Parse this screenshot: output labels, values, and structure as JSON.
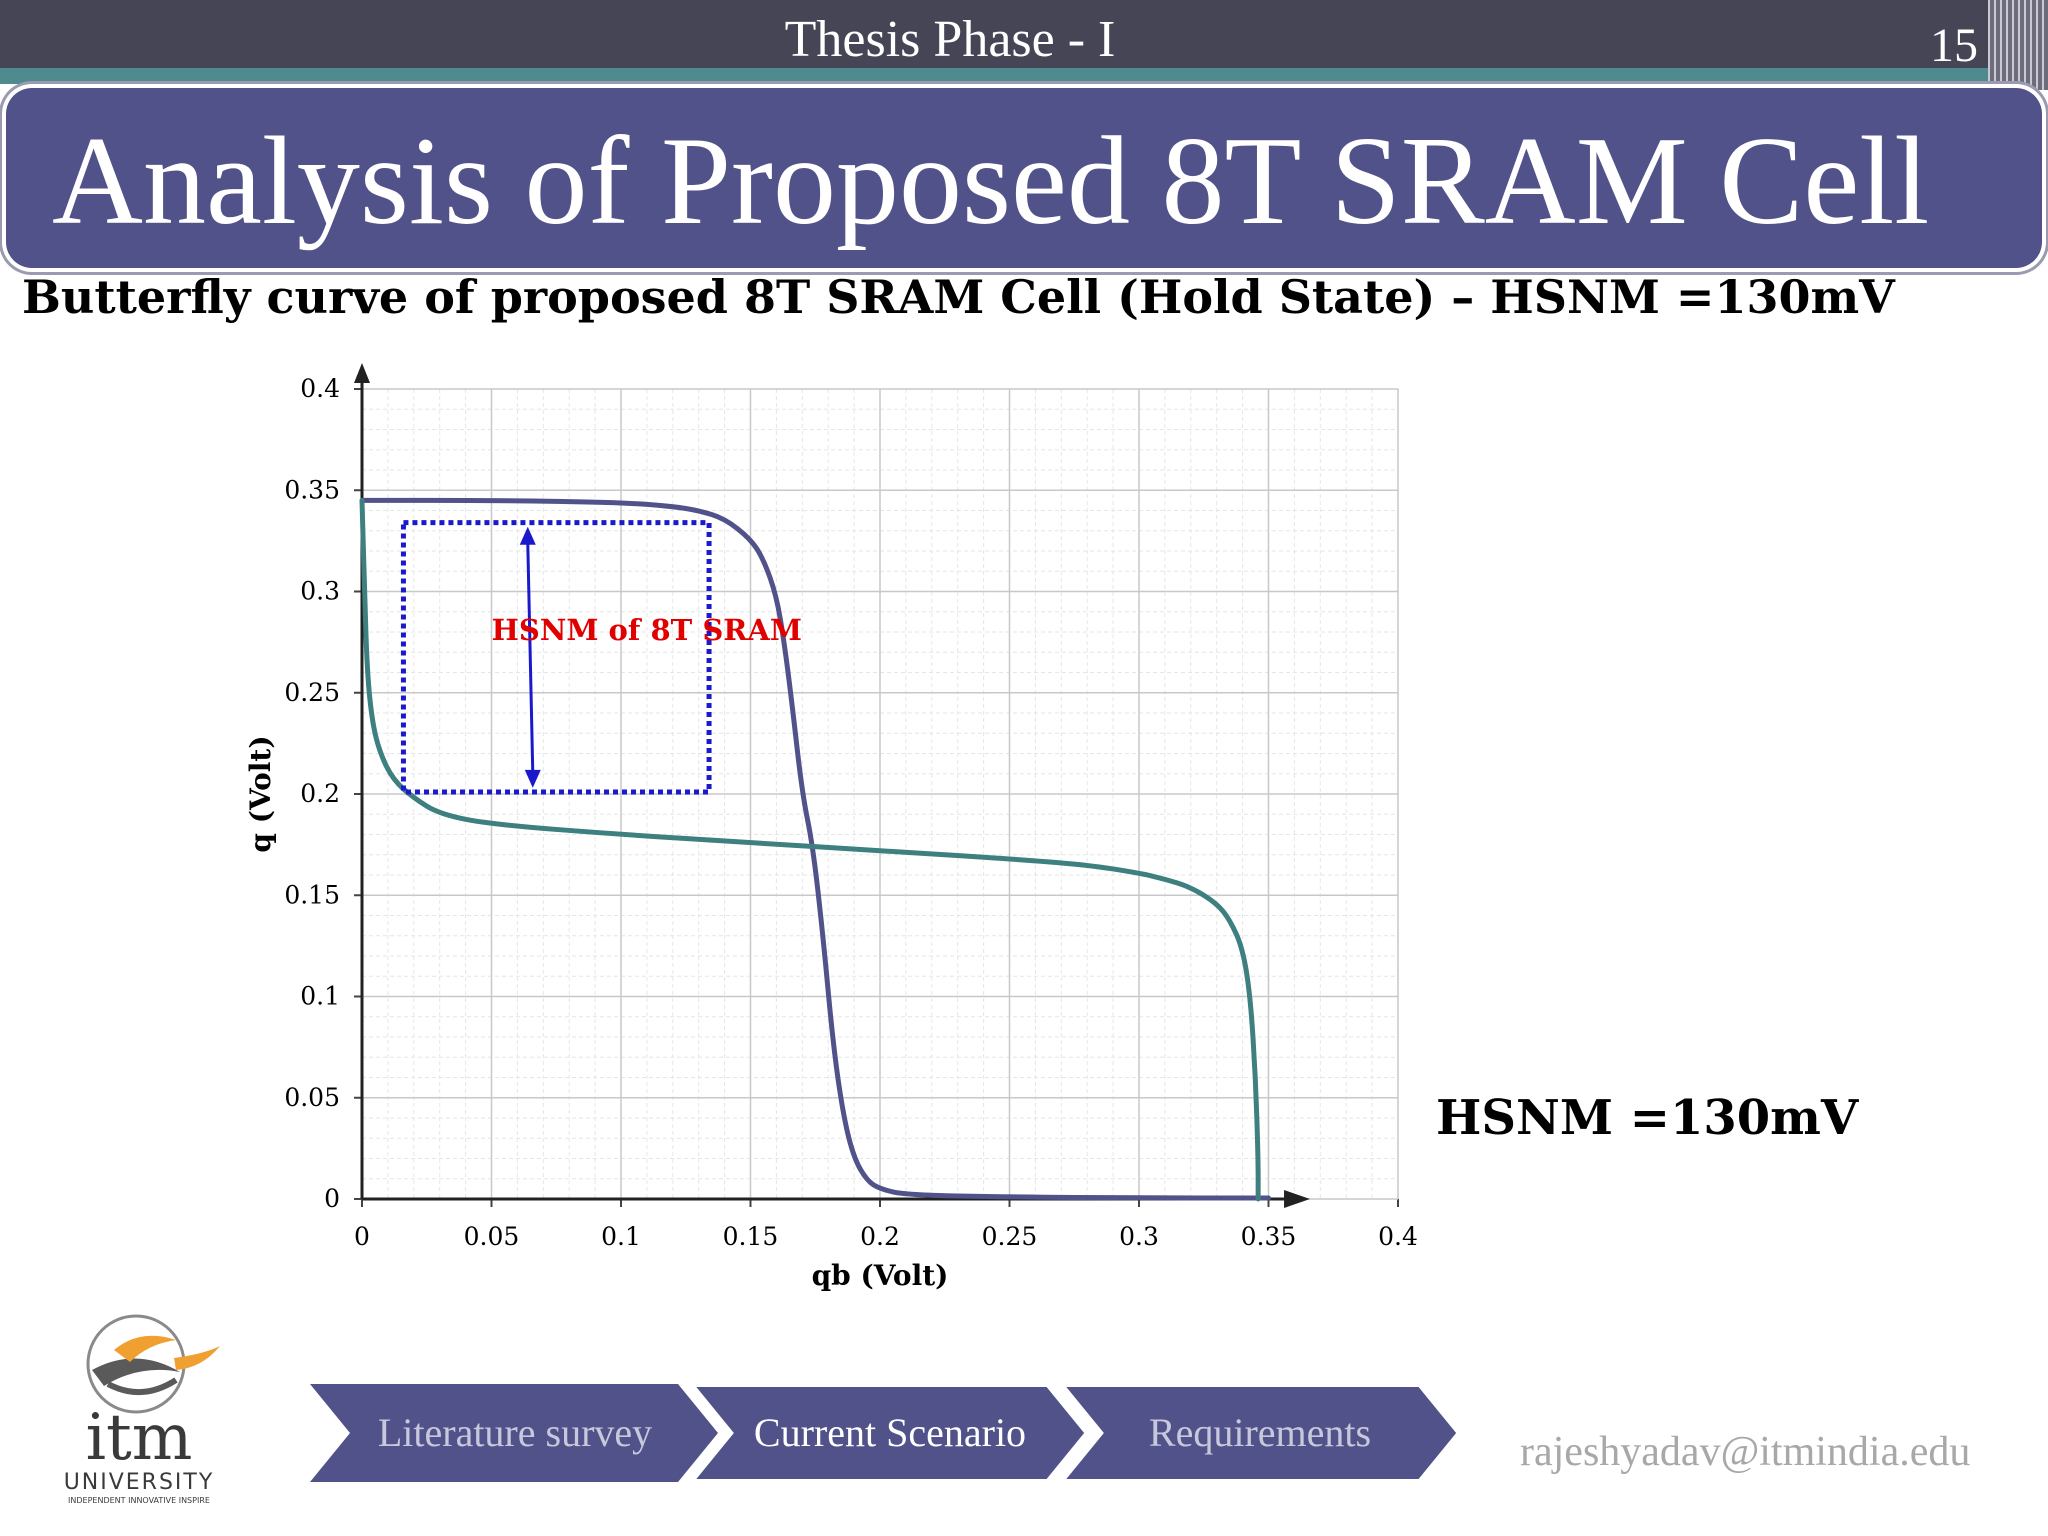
{
  "header": {
    "deck_title": "Thesis Phase - I",
    "slide_number": "15"
  },
  "slide": {
    "title": "Analysis of Proposed 8T SRAM Cell",
    "subtitle": "Butterfly curve of proposed 8T SRAM Cell (Hold State) – HSNM =130mV",
    "hsnm_value": "HSNM =130mV"
  },
  "chart_data": {
    "type": "line",
    "xlabel": "qb (Volt)",
    "ylabel": "q (Volt)",
    "xlim": [
      0,
      0.4
    ],
    "ylim": [
      0,
      0.4
    ],
    "xticks": [
      "0",
      "0.05",
      "0.1",
      "0.15",
      "0.2",
      "0.25",
      "0.3",
      "0.35",
      "0.4"
    ],
    "yticks": [
      "0",
      "0.05",
      "0.1",
      "0.15",
      "0.2",
      "0.25",
      "0.3",
      "0.35",
      "0.4"
    ],
    "grid": true,
    "series": [
      {
        "color": "#52528a",
        "x": [
          0.001,
          0.05,
          0.1,
          0.12,
          0.13,
          0.14,
          0.15,
          0.155,
          0.16,
          0.163,
          0.166,
          0.17,
          0.174,
          0.178,
          0.182,
          0.186,
          0.19,
          0.195,
          0.2,
          0.21,
          0.25,
          0.3,
          0.35
        ],
        "y": [
          0.345,
          0.345,
          0.344,
          0.342,
          0.34,
          0.336,
          0.326,
          0.316,
          0.298,
          0.275,
          0.245,
          0.2,
          0.175,
          0.13,
          0.075,
          0.04,
          0.02,
          0.009,
          0.005,
          0.002,
          0.001,
          0.0005,
          0.0005
        ]
      },
      {
        "color": "#3e7f7f",
        "x": [
          0.0,
          0.001,
          0.002,
          0.004,
          0.007,
          0.012,
          0.02,
          0.03,
          0.05,
          0.1,
          0.15,
          0.2,
          0.25,
          0.28,
          0.3,
          0.31,
          0.32,
          0.33,
          0.335,
          0.34,
          0.343,
          0.345,
          0.346,
          0.346
        ],
        "y": [
          0.345,
          0.3,
          0.26,
          0.235,
          0.22,
          0.207,
          0.198,
          0.19,
          0.185,
          0.18,
          0.176,
          0.172,
          0.168,
          0.165,
          0.161,
          0.158,
          0.154,
          0.146,
          0.138,
          0.124,
          0.1,
          0.06,
          0.02,
          0.0
        ]
      }
    ],
    "annotation": {
      "label": "HSNM of 8T SRAM",
      "label_color": "#e00000",
      "box": {
        "x0": 0.016,
        "x1": 0.134,
        "y0": 0.201,
        "y1": 0.334,
        "color": "#1a1acc"
      },
      "arrow": {
        "x": 0.064,
        "y0": 0.203,
        "y1": 0.332,
        "color": "#1a1acc"
      }
    }
  },
  "footer": {
    "logo_name": "itm",
    "logo_sub": "UNIVERSITY",
    "logo_tagline": "INDEPENDENT INNOVATIVE INSPIRE",
    "nav": [
      {
        "label": "Literature survey",
        "active": false
      },
      {
        "label": "Current Scenario",
        "active": true
      },
      {
        "label": "Requirements",
        "active": false
      }
    ],
    "email": "rajeshyadav@itmindia.edu"
  }
}
